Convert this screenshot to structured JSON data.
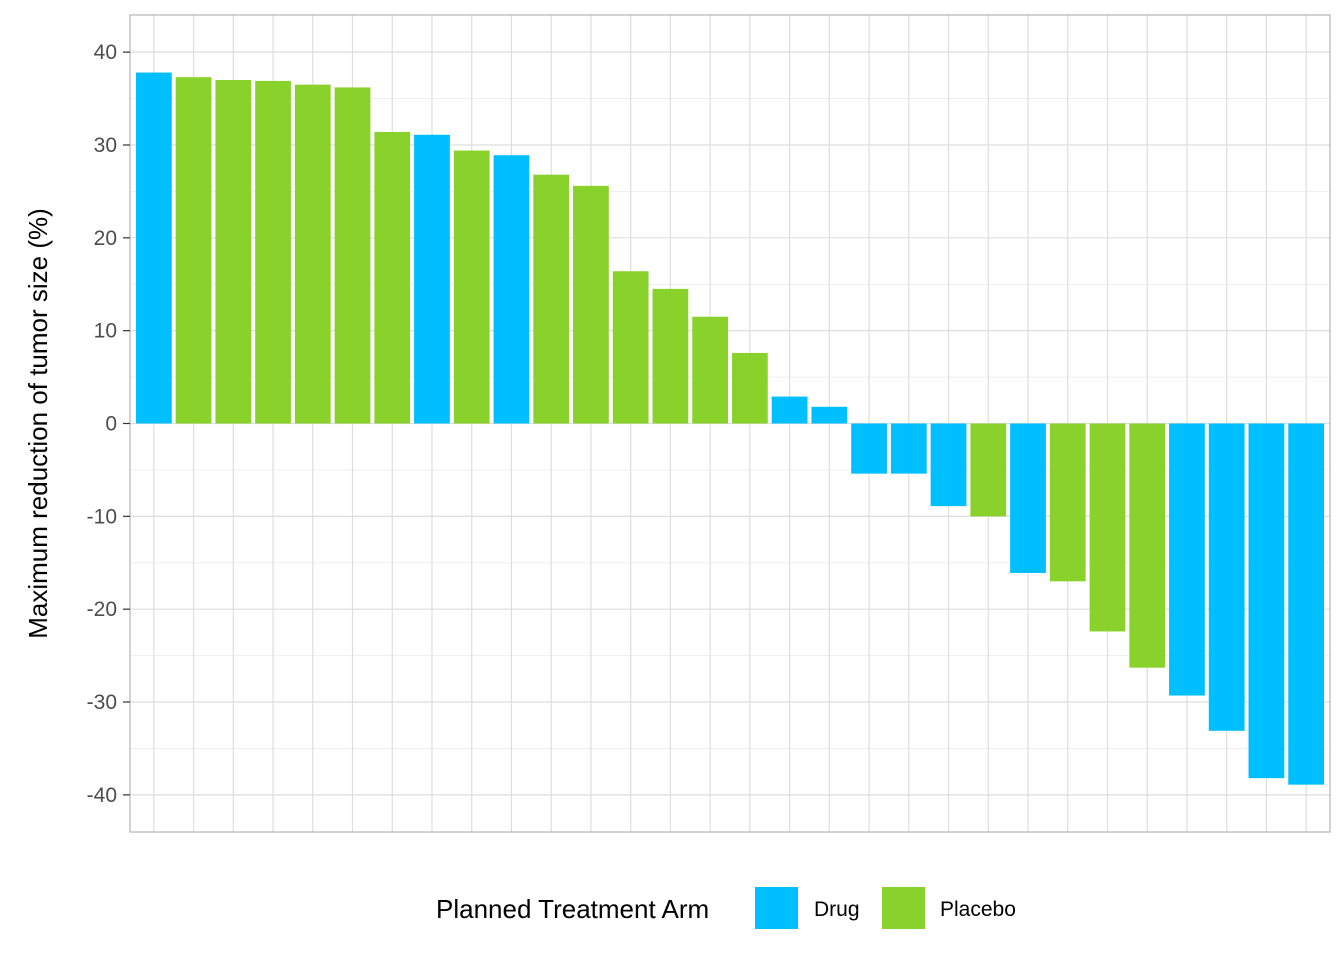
{
  "chart_data": {
    "type": "bar",
    "title": "",
    "xlabel": "",
    "ylabel": "Maximum reduction of tumor size (%)",
    "ylim": [
      -44,
      44
    ],
    "yticks": [
      40,
      30,
      20,
      10,
      0,
      -10,
      -20,
      -30,
      -40
    ],
    "tick_labels": [
      "40",
      "30",
      "20",
      "10",
      "0",
      "-10",
      "-20",
      "-30",
      "-40"
    ],
    "grid": true,
    "legend": {
      "title": "Planned Treatment Arm",
      "placement": "bottom",
      "entries": [
        {
          "name": "Drug",
          "color": "#00BFFF"
        },
        {
          "name": "Placebo",
          "color": "#89D22B"
        }
      ]
    },
    "bars": [
      {
        "arm": "Drug",
        "value": 37.8
      },
      {
        "arm": "Placebo",
        "value": 37.3
      },
      {
        "arm": "Placebo",
        "value": 37.0
      },
      {
        "arm": "Placebo",
        "value": 36.9
      },
      {
        "arm": "Placebo",
        "value": 36.5
      },
      {
        "arm": "Placebo",
        "value": 36.2
      },
      {
        "arm": "Placebo",
        "value": 31.4
      },
      {
        "arm": "Drug",
        "value": 31.1
      },
      {
        "arm": "Placebo",
        "value": 29.4
      },
      {
        "arm": "Drug",
        "value": 28.9
      },
      {
        "arm": "Placebo",
        "value": 26.8
      },
      {
        "arm": "Placebo",
        "value": 25.6
      },
      {
        "arm": "Placebo",
        "value": 16.4
      },
      {
        "arm": "Placebo",
        "value": 14.5
      },
      {
        "arm": "Placebo",
        "value": 11.5
      },
      {
        "arm": "Placebo",
        "value": 7.6
      },
      {
        "arm": "Drug",
        "value": 2.9
      },
      {
        "arm": "Drug",
        "value": 1.8
      },
      {
        "arm": "Drug",
        "value": -5.4
      },
      {
        "arm": "Drug",
        "value": -5.4
      },
      {
        "arm": "Drug",
        "value": -8.9
      },
      {
        "arm": "Placebo",
        "value": -10.0
      },
      {
        "arm": "Drug",
        "value": -16.1
      },
      {
        "arm": "Placebo",
        "value": -17.0
      },
      {
        "arm": "Placebo",
        "value": -22.4
      },
      {
        "arm": "Placebo",
        "value": -26.3
      },
      {
        "arm": "Drug",
        "value": -29.3
      },
      {
        "arm": "Drug",
        "value": -33.1
      },
      {
        "arm": "Drug",
        "value": -38.2
      },
      {
        "arm": "Drug",
        "value": -38.9
      }
    ]
  }
}
